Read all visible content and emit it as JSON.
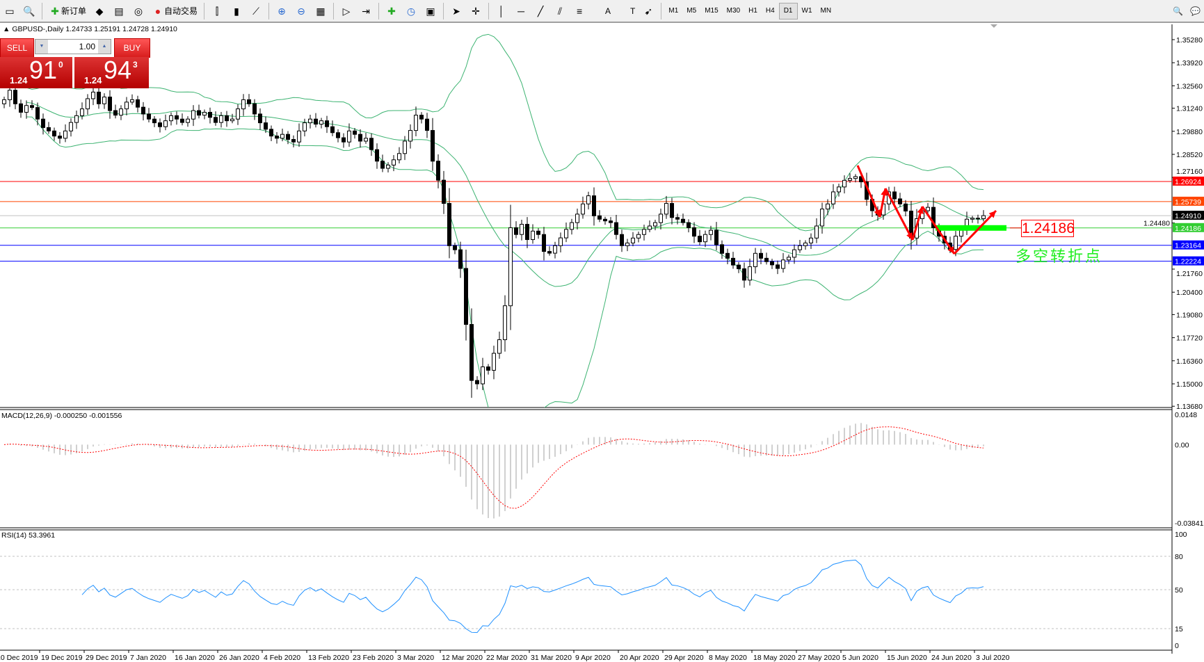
{
  "toolbar": {
    "items": [
      {
        "icon": "chart-window-icon",
        "label": ""
      },
      {
        "icon": "zoom-chart-icon",
        "label": ""
      },
      {
        "icon": "new-order-icon",
        "label": "新订单"
      },
      {
        "icon": "market-watch-icon",
        "label": ""
      },
      {
        "icon": "navigator-icon",
        "label": ""
      },
      {
        "icon": "signal-icon",
        "label": ""
      },
      {
        "icon": "auto-trading-icon",
        "label": "自动交易"
      },
      {
        "icon": "bar-chart-icon",
        "label": ""
      },
      {
        "icon": "candlestick-icon",
        "label": ""
      },
      {
        "icon": "line-chart-icon",
        "label": ""
      },
      {
        "icon": "zoom-in-icon",
        "label": ""
      },
      {
        "icon": "zoom-out-icon",
        "label": ""
      },
      {
        "icon": "tile-windows-icon",
        "label": ""
      },
      {
        "icon": "chart-shift-icon",
        "label": ""
      },
      {
        "icon": "autoscroll-icon",
        "label": ""
      },
      {
        "icon": "indicators-icon",
        "label": ""
      },
      {
        "icon": "periods-icon",
        "label": ""
      },
      {
        "icon": "templates-icon",
        "label": ""
      },
      {
        "icon": "cursor-icon",
        "label": ""
      },
      {
        "icon": "crosshair-icon",
        "label": ""
      },
      {
        "icon": "vertical-line-icon",
        "label": ""
      },
      {
        "icon": "horizontal-line-icon",
        "label": ""
      },
      {
        "icon": "trendline-icon",
        "label": ""
      },
      {
        "icon": "equidistant-channel-icon",
        "label": ""
      },
      {
        "icon": "fibonacci-icon",
        "label": ""
      },
      {
        "icon": "text-icon",
        "label": "A"
      },
      {
        "icon": "text-label-icon",
        "label": "T"
      },
      {
        "icon": "arrows-icon",
        "label": ""
      }
    ],
    "timeframes": [
      "M1",
      "M5",
      "M15",
      "M30",
      "H1",
      "H4",
      "D1",
      "W1",
      "MN"
    ],
    "active_timeframe": "D1"
  },
  "chart": {
    "title": "GBPUSD-,Daily  1.24733 1.25191 1.24728 1.24910",
    "trade_panel": {
      "sell_label": "SELL",
      "buy_label": "BUY",
      "lot": "1.00",
      "sell_prefix": "1.24",
      "sell_big": "91",
      "sell_sup": "0",
      "buy_prefix": "1.24",
      "buy_big": "94",
      "buy_sup": "3"
    },
    "annotation_price": "1.24186",
    "annotation_text": "多空转折点"
  },
  "chart_data": {
    "type": "candlestick",
    "symbol": "GBPUSD-",
    "timeframe": "Daily",
    "first_open": 1.315,
    "close": [
      1.3174,
      1.323,
      1.315,
      1.31,
      1.314,
      1.3128,
      1.306,
      1.301,
      1.299,
      1.296,
      1.2947,
      1.299,
      1.304,
      1.308,
      1.312,
      1.318,
      1.3219,
      1.315,
      1.319,
      1.311,
      1.3083,
      1.312,
      1.316,
      1.3174,
      1.313,
      1.309,
      1.306,
      1.3038,
      1.3015,
      1.305,
      1.308,
      1.306,
      1.304,
      1.306,
      1.311,
      1.3083,
      1.31,
      1.307,
      1.304,
      1.308,
      1.305,
      1.306,
      1.312,
      1.3174,
      1.315,
      1.309,
      1.3038,
      1.3,
      1.296,
      1.2947,
      1.297,
      1.294,
      1.2925,
      1.299,
      1.3038,
      1.306,
      1.303,
      1.305,
      1.3015,
      1.298,
      1.295,
      1.2925,
      1.299,
      1.297,
      1.293,
      1.2947,
      1.288,
      1.2812,
      1.277,
      1.2789,
      1.282,
      1.2857,
      1.293,
      1.2993,
      1.3083,
      1.306,
      1.2993,
      1.2812,
      1.27,
      1.2563,
      1.2314,
      1.229,
      1.218,
      1.185,
      1.152,
      1.15,
      1.16,
      1.158,
      1.168,
      1.176,
      1.196,
      1.242,
      1.238,
      1.244,
      1.235,
      1.24,
      1.238,
      1.228,
      1.227,
      1.2314,
      1.236,
      1.241,
      1.245,
      1.25,
      1.256,
      1.2608,
      1.249,
      1.247,
      1.246,
      1.245,
      1.238,
      1.2314,
      1.233,
      1.2359,
      1.238,
      1.241,
      1.243,
      1.245,
      1.25,
      1.2563,
      1.248,
      1.247,
      1.245,
      1.242,
      1.237,
      1.2337,
      1.238,
      1.2405,
      1.232,
      1.2269,
      1.224,
      1.22,
      1.2178,
      1.2111,
      1.219,
      1.2269,
      1.224,
      1.222,
      1.2201,
      1.218,
      1.223,
      1.2246,
      1.229,
      1.2314,
      1.233,
      1.2359,
      1.243,
      1.253,
      1.256,
      1.2631,
      1.266,
      1.2699,
      1.271,
      1.2721,
      1.269,
      1.2587,
      1.252,
      1.2495,
      1.256,
      1.2631,
      1.259,
      1.256,
      1.2518,
      1.2359,
      1.2473,
      1.252,
      1.254,
      1.242,
      1.237,
      1.233,
      1.2292,
      1.237,
      1.2405,
      1.247,
      1.2476,
      1.2473,
      1.2491
    ],
    "last": {
      "open": "1.24733",
      "high": "1.25191",
      "low": "1.24728",
      "close": "1.24910"
    },
    "price_axis": [
      "1.35280",
      "1.33920",
      "1.32560",
      "1.31240",
      "1.29880",
      "1.28520",
      "1.27160",
      "1.24480",
      "1.21760",
      "1.20400",
      "1.19080",
      "1.17720",
      "1.16360",
      "1.15000",
      "1.13680"
    ],
    "ylim": [
      1.1368,
      1.3618
    ],
    "date_axis": [
      "10 Dec 2019",
      "19 Dec 2019",
      "29 Dec 2019",
      "7 Jan 2020",
      "16 Jan 2020",
      "26 Jan 2020",
      "4 Feb 2020",
      "13 Feb 2020",
      "23 Feb 2020",
      "3 Mar 2020",
      "12 Mar 2020",
      "22 Mar 2020",
      "31 Mar 2020",
      "9 Apr 2020",
      "20 Apr 2020",
      "29 Apr 2020",
      "8 May 2020",
      "18 May 2020",
      "27 May 2020",
      "5 Jun 2020",
      "15 Jun 2020",
      "24 Jun 2020",
      "3 Jul 2020"
    ],
    "hlines": [
      {
        "price": 1.26924,
        "label": "1.26924",
        "color": "#ff0000"
      },
      {
        "price": 1.25739,
        "label": "1.25739",
        "color": "#ff4500"
      },
      {
        "price": 1.2491,
        "label": "1.24910",
        "color": "#c0c0c0",
        "label_bg": "#000000"
      },
      {
        "price": 1.24186,
        "label": "1.24186",
        "color": "#32cd32"
      },
      {
        "price": 1.23164,
        "label": "1.23164",
        "color": "#0000ff"
      },
      {
        "price": 1.22224,
        "label": "1.22224",
        "color": "#0000ff"
      }
    ],
    "bollinger": {
      "period": 20,
      "deviation": 2,
      "color": "#3cb371"
    },
    "macd": {
      "label": "MACD(12,26,9) -0.000250 -0.001556",
      "fast": 12,
      "slow": 26,
      "signal": 9,
      "axis": [
        "0.0148",
        "0.00",
        "-0.038415"
      ],
      "ylim": [
        -0.038415,
        0.0148
      ],
      "hist_color": "#c0c0c0",
      "signal_color": "#ff0000"
    },
    "rsi": {
      "label": "RSI(14) 53.3961",
      "period": 14,
      "axis": [
        "100",
        "80",
        "50",
        "15",
        "0"
      ],
      "levels": [
        80,
        50,
        15
      ],
      "color": "#1e90ff"
    },
    "colors": {
      "bull_body": "#ffffff",
      "bear_body": "#000000",
      "zigzag_arrows": "#ff0000",
      "key_zone": "#00ff00"
    }
  }
}
